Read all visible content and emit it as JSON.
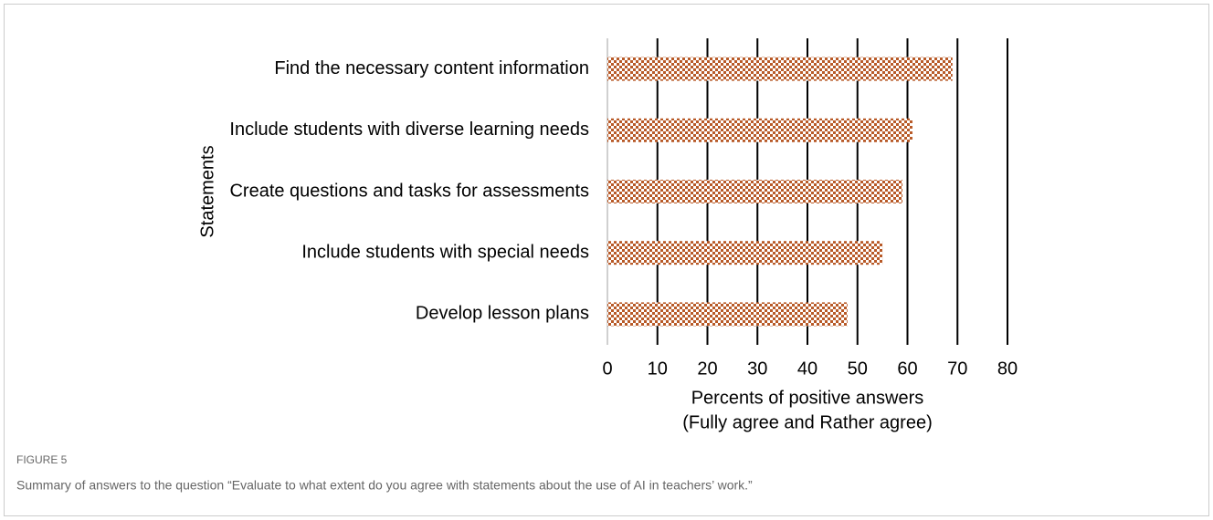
{
  "chart_data": {
    "type": "bar",
    "orientation": "horizontal",
    "figure_label": "FIGURE 5",
    "caption": "Summary of answers to the question “Evaluate to what extent do you agree with statements about the use of AI in teachers’ work.”",
    "xlabel": [
      "Percents of positive answers",
      "(Fully agree and Rather agree)"
    ],
    "ylabel": "Statements",
    "categories": [
      "Find the necessary content information",
      "Include students with diverse learning needs",
      "Create questions and tasks for assessments",
      "Include students with special needs",
      "Develop lesson plans"
    ],
    "values": [
      69,
      61,
      59,
      55,
      48
    ],
    "color": "#b85a28",
    "xlim": [
      0,
      80
    ],
    "xticks": [
      0,
      10,
      20,
      30,
      40,
      50,
      60,
      70,
      80
    ],
    "grid": true
  }
}
